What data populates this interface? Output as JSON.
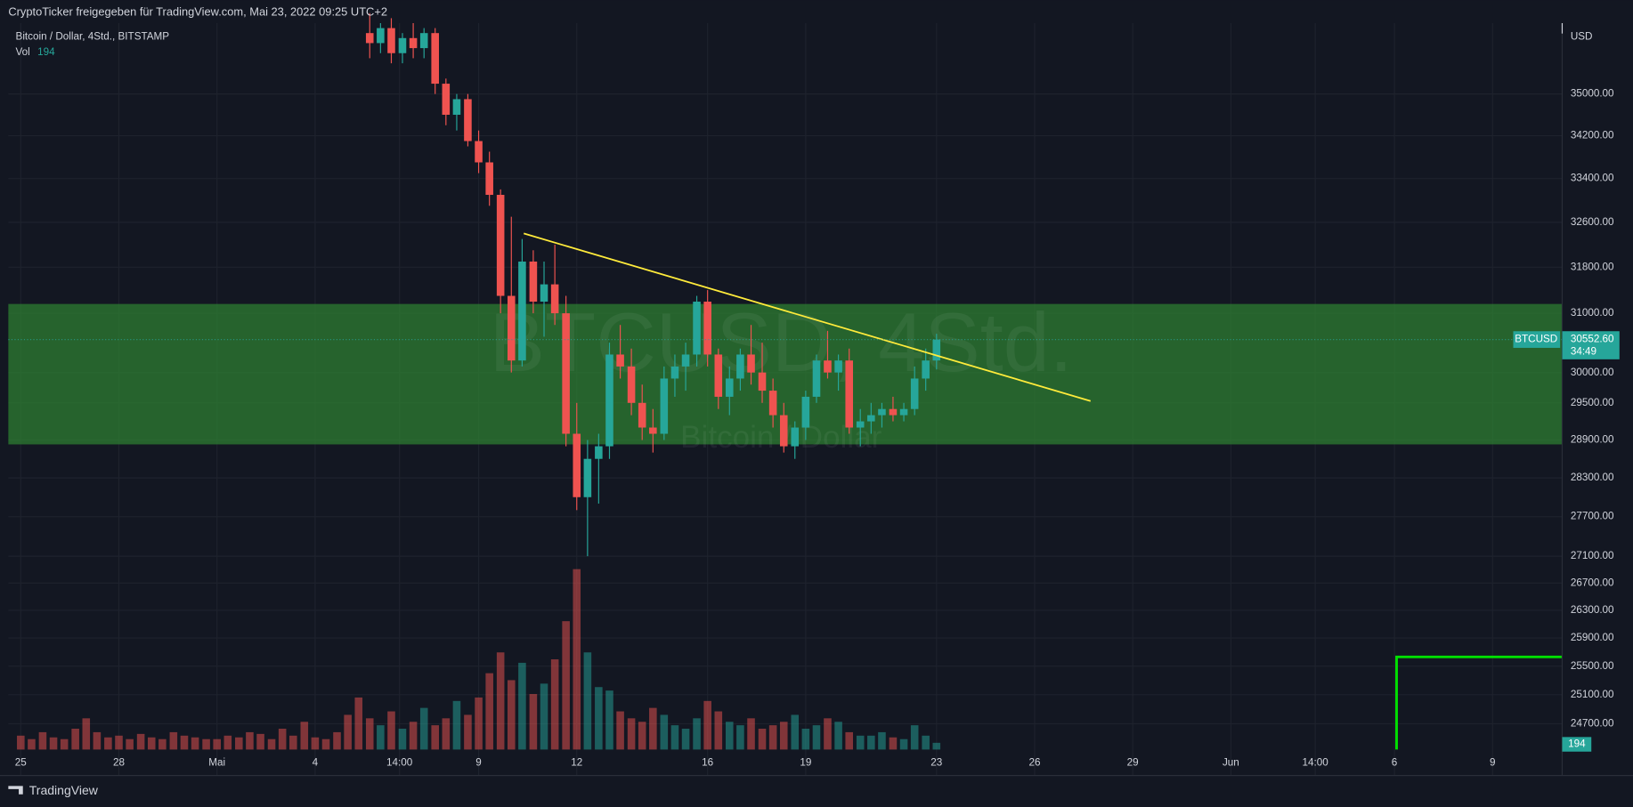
{
  "header": "CryptoTicker freigegeben für TradingView.com, Mai 23, 2022 09:25 UTC+2",
  "footer": "TradingView",
  "chart_data": {
    "type": "candlestick",
    "symbol_title": "Bitcoin / Dollar, 4Std., BITSTAMP",
    "watermark": "BTCUSD, 4Std.",
    "watermark_sub": "Bitcoin / Dollar",
    "currency": "USD",
    "symbol": "BTCUSD",
    "last_price": {
      "value": 30552.6,
      "label": "30552.60"
    },
    "countdown": "34:49",
    "up_color": "#26a69a",
    "down_color": "#ef5350",
    "log_scale": true,
    "grid": true,
    "xlim": [
      -0.38,
      47.13
    ],
    "ylim": [
      24350,
      36400
    ],
    "xticks": [
      {
        "value": 0,
        "label": "25"
      },
      {
        "value": 3,
        "label": "28"
      },
      {
        "value": 6,
        "label": "Mai"
      },
      {
        "value": 9,
        "label": "4"
      },
      {
        "value": 11.58,
        "label": "14:00"
      },
      {
        "value": 14,
        "label": "9"
      },
      {
        "value": 17,
        "label": "12"
      },
      {
        "value": 21,
        "label": "16"
      },
      {
        "value": 24,
        "label": "19"
      },
      {
        "value": 28,
        "label": "23"
      },
      {
        "value": 31,
        "label": "26"
      },
      {
        "value": 34,
        "label": "29"
      },
      {
        "value": 37,
        "label": "Jun"
      },
      {
        "value": 39.58,
        "label": "14:00"
      },
      {
        "value": 42,
        "label": "6"
      },
      {
        "value": 45,
        "label": "9"
      }
    ],
    "yticks": [
      {
        "value": 35000,
        "label": "35000.00"
      },
      {
        "value": 34200,
        "label": "34200.00"
      },
      {
        "value": 33400,
        "label": "33400.00"
      },
      {
        "value": 32600,
        "label": "32600.00"
      },
      {
        "value": 31800,
        "label": "31800.00"
      },
      {
        "value": 31000,
        "label": "31000.00"
      },
      {
        "value": 30000,
        "label": "30000.00"
      },
      {
        "value": 29500,
        "label": "29500.00"
      },
      {
        "value": 28900,
        "label": "28900.00"
      },
      {
        "value": 28300,
        "label": "28300.00"
      },
      {
        "value": 27700,
        "label": "27700.00"
      },
      {
        "value": 27100,
        "label": "27100.00"
      },
      {
        "value": 26700,
        "label": "26700.00"
      },
      {
        "value": 26300,
        "label": "26300.00"
      },
      {
        "value": 25900,
        "label": "25900.00"
      },
      {
        "value": 25500,
        "label": "25500.00"
      },
      {
        "value": 25100,
        "label": "25100.00"
      },
      {
        "value": 24700,
        "label": "24700.00"
      }
    ],
    "zone": {
      "ylim": [
        28830,
        31160
      ],
      "color": "#2e7d32"
    },
    "trendline": {
      "x": [
        15.38,
        32.71
      ],
      "y": [
        32400,
        29530
      ],
      "color": "#ffeb3b"
    },
    "candles": {
      "x": [
        10.67,
        11,
        11.33,
        11.67,
        12,
        12.33,
        12.67,
        13,
        13.33,
        13.67,
        14,
        14.33,
        14.67,
        15,
        15.33,
        15.67,
        16,
        16.33,
        16.67,
        17,
        17.33,
        17.67,
        18,
        18.33,
        18.67,
        19,
        19.33,
        19.67,
        20,
        20.33,
        20.67,
        21,
        21.33,
        21.67,
        22,
        22.33,
        22.67,
        23,
        23.33,
        23.67,
        24,
        24.33,
        24.67,
        25,
        25.33,
        25.67,
        26,
        26.33,
        26.67,
        27,
        27.33,
        27.67,
        28
      ],
      "open": [
        36200,
        36000,
        36300,
        35800,
        36100,
        35900,
        36200,
        35200,
        34600,
        34900,
        34100,
        33700,
        33100,
        31300,
        30200,
        31900,
        31200,
        31500,
        31000,
        29000,
        28000,
        28600,
        28800,
        30300,
        30100,
        29500,
        29100,
        29000,
        29900,
        30100,
        30300,
        31200,
        30300,
        29600,
        29900,
        30300,
        30000,
        29700,
        29300,
        28800,
        29100,
        29600,
        30200,
        30000,
        30200,
        29100,
        29200,
        29300,
        29400,
        29300,
        29400,
        29900,
        30200
      ],
      "high": [
        36600,
        36400,
        36500,
        36200,
        36400,
        36300,
        36300,
        35300,
        35000,
        35000,
        34300,
        33900,
        33200,
        32700,
        32300,
        32100,
        31900,
        32200,
        31300,
        29500,
        28900,
        29000,
        30500,
        30800,
        30400,
        29800,
        29400,
        30100,
        30300,
        30500,
        31300,
        31400,
        30400,
        30100,
        30400,
        30800,
        30500,
        29900,
        29500,
        29200,
        29700,
        30300,
        30700,
        30300,
        30400,
        29400,
        29500,
        29500,
        29600,
        29500,
        30100,
        30400,
        30650
      ],
      "low": [
        35700,
        35800,
        35600,
        35600,
        35700,
        35700,
        35000,
        34400,
        34300,
        34000,
        33500,
        32900,
        31000,
        30000,
        30100,
        31000,
        30600,
        30800,
        28800,
        27800,
        27100,
        27900,
        28600,
        29900,
        29300,
        28900,
        28700,
        28900,
        29600,
        29700,
        30100,
        30100,
        29400,
        29300,
        29700,
        29800,
        29500,
        29100,
        28700,
        28600,
        28900,
        29500,
        29900,
        29700,
        29000,
        28800,
        29000,
        29100,
        29200,
        29200,
        29300,
        29700,
        30050
      ],
      "close": [
        36000,
        36300,
        35800,
        36100,
        35900,
        36200,
        35200,
        34600,
        34900,
        34100,
        33700,
        33100,
        31300,
        30200,
        31900,
        31200,
        31500,
        31000,
        29000,
        28000,
        28600,
        28800,
        30300,
        30100,
        29500,
        29100,
        29000,
        29900,
        30100,
        30300,
        31200,
        30300,
        29600,
        29900,
        30300,
        30000,
        29700,
        29300,
        28800,
        29100,
        29600,
        30200,
        30000,
        30200,
        29100,
        29200,
        29300,
        29400,
        29300,
        29400,
        29900,
        30200,
        30552.6
      ]
    },
    "volume": {
      "name": "Vol",
      "vlim": [
        0,
        6000
      ],
      "x": [
        0,
        0.33,
        0.67,
        1,
        1.33,
        1.67,
        2,
        2.33,
        2.67,
        3,
        3.33,
        3.67,
        4,
        4.33,
        4.67,
        5,
        5.33,
        5.67,
        6,
        6.33,
        6.67,
        7,
        7.33,
        7.67,
        8,
        8.33,
        8.67,
        9,
        9.33,
        9.67,
        10,
        10.33,
        10.67,
        11,
        11.33,
        11.67,
        12,
        12.33,
        12.67,
        13,
        13.33,
        13.67,
        14,
        14.33,
        14.67,
        15,
        15.33,
        15.67,
        16,
        16.33,
        16.67,
        17,
        17.33,
        17.67,
        18,
        18.33,
        18.67,
        19,
        19.33,
        19.67,
        20,
        20.33,
        20.67,
        21,
        21.33,
        21.67,
        22,
        22.33,
        22.67,
        23,
        23.33,
        23.67,
        24,
        24.33,
        24.67,
        25,
        25.33,
        25.67,
        26,
        26.33,
        26.67,
        27,
        27.33,
        27.67,
        28
      ],
      "values": [
        400,
        300,
        500,
        350,
        300,
        600,
        900,
        500,
        350,
        400,
        300,
        450,
        350,
        300,
        500,
        400,
        350,
        300,
        300,
        400,
        350,
        500,
        450,
        300,
        600,
        400,
        800,
        350,
        300,
        500,
        1000,
        1500,
        900,
        700,
        1100,
        600,
        800,
        1200,
        700,
        900,
        1400,
        1000,
        1500,
        2200,
        2800,
        2000,
        2500,
        1600,
        1900,
        2600,
        3700,
        5200,
        2800,
        1800,
        1700,
        1100,
        900,
        800,
        1200,
        1000,
        700,
        600,
        900,
        1400,
        1100,
        800,
        700,
        900,
        600,
        700,
        800,
        1000,
        600,
        700,
        900,
        800,
        500,
        400,
        400,
        500,
        350,
        300,
        700,
        400,
        194
      ]
    }
  }
}
